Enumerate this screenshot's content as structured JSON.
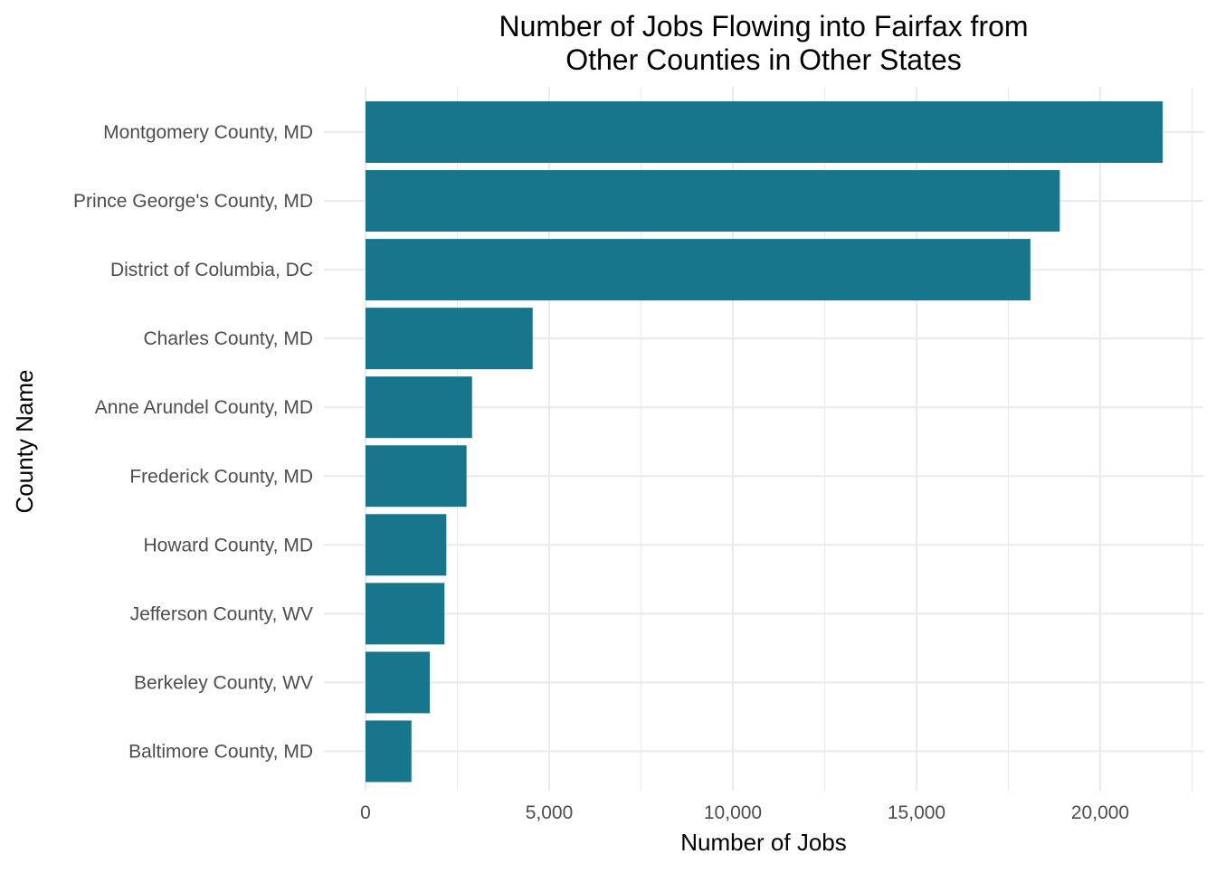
{
  "chart_data": {
    "type": "bar",
    "orientation": "horizontal",
    "title": [
      "Number of Jobs Flowing into Fairfax from",
      "Other Counties in Other States"
    ],
    "xlabel": "Number of Jobs",
    "ylabel": "County Name",
    "categories": [
      "Montgomery County, MD",
      "Prince George's County, MD",
      "District of Columbia, DC",
      "Charles County, MD",
      "Anne Arundel County, MD",
      "Frederick County, MD",
      "Howard County, MD",
      "Jefferson County, WV",
      "Berkeley County, WV",
      "Baltimore County, MD"
    ],
    "values": [
      21700,
      18900,
      18100,
      4550,
      2900,
      2750,
      2200,
      2150,
      1750,
      1250
    ],
    "xlim": [
      0,
      22500
    ],
    "xticks": [
      0,
      5000,
      10000,
      15000,
      20000
    ],
    "xtick_labels": [
      "0",
      "5,000",
      "10,000",
      "15,000",
      "20,000"
    ],
    "bar_color": "#17768b",
    "grid": true,
    "legend": "none"
  }
}
